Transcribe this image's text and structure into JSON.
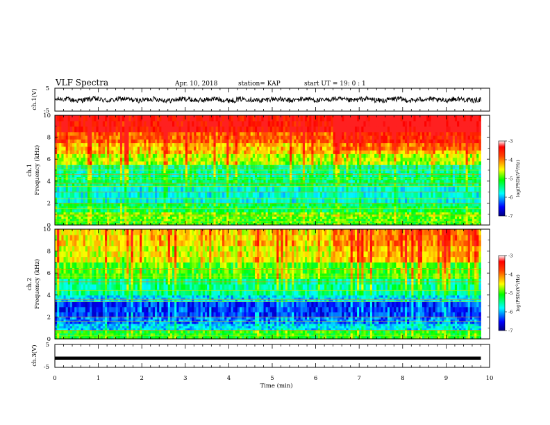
{
  "header": {
    "title": "VLF Spectra",
    "date": "Apr. 10, 2018",
    "station": "station= KAP",
    "start": "start  UT =   19: 0  : 1"
  },
  "chart_data": [
    {
      "id": "ch1-waveform",
      "type": "line",
      "ylabel": "ch.1(V)",
      "ylim": [
        -5,
        5
      ],
      "yticks": [
        "5",
        "-5"
      ],
      "xlim": [
        0,
        10
      ],
      "extent_min": 9.8,
      "amplitude_V": [
        -1.5,
        1.5
      ]
    },
    {
      "id": "ch1-spectrogram",
      "type": "heatmap",
      "ylabel": "Frequency (kHz)",
      "channel_label": "ch.1",
      "ylim": [
        0,
        10
      ],
      "yticks": [
        "0",
        "2",
        "4",
        "6",
        "8",
        "10"
      ],
      "xlim": [
        0,
        10
      ],
      "extent_min": 9.8,
      "colorbar": {
        "label": "log(PSD)(V²/Hz)",
        "range": [
          -7,
          -3
        ],
        "ticks": [
          "-3",
          "-4",
          "-5",
          "-6",
          "-7"
        ]
      },
      "bands": [
        {
          "from_kHz": 0,
          "to_kHz": 0.6,
          "log_psd": -5.0
        },
        {
          "from_kHz": 0.6,
          "to_kHz": 1.2,
          "log_psd": -4.9
        },
        {
          "from_kHz": 1.2,
          "to_kHz": 2.0,
          "log_psd": -5.3
        },
        {
          "from_kHz": 2.0,
          "to_kHz": 3.6,
          "log_psd": -5.7
        },
        {
          "from_kHz": 3.6,
          "to_kHz": 4.4,
          "log_psd": -5.4
        },
        {
          "from_kHz": 4.4,
          "to_kHz": 5.5,
          "log_psd": -5.5
        },
        {
          "from_kHz": 5.5,
          "to_kHz": 6.5,
          "log_psd": -4.7
        },
        {
          "from_kHz": 6.5,
          "to_kHz": 7.5,
          "log_psd": -4.3
        },
        {
          "from_kHz": 7.5,
          "to_kHz": 8.5,
          "log_psd": -3.9
        },
        {
          "from_kHz": 8.5,
          "to_kHz": 10,
          "log_psd": -3.4
        }
      ],
      "tones_kHz": [
        0.3,
        0.9,
        1.5,
        2.0,
        2.4,
        3.0,
        3.5,
        3.8,
        4.2,
        4.6,
        5.0,
        5.3
      ]
    },
    {
      "id": "ch2-spectrogram",
      "type": "heatmap",
      "ylabel": "Frequency (kHz)",
      "channel_label": "ch.2",
      "ylim": [
        0,
        10
      ],
      "yticks": [
        "0",
        "2",
        "4",
        "6",
        "8",
        "10"
      ],
      "xlim": [
        0,
        10
      ],
      "extent_min": 9.8,
      "colorbar": {
        "label": "log(PSD)(V²/Hz)",
        "range": [
          -7,
          -3
        ],
        "ticks": [
          "-3",
          "-4",
          "-5",
          "-6",
          "-7"
        ]
      },
      "bands": [
        {
          "from_kHz": 0,
          "to_kHz": 0.8,
          "log_psd": -5.1
        },
        {
          "from_kHz": 0.8,
          "to_kHz": 1.4,
          "log_psd": -5.9
        },
        {
          "from_kHz": 1.4,
          "to_kHz": 2.0,
          "log_psd": -6.2
        },
        {
          "from_kHz": 2.0,
          "to_kHz": 3.4,
          "log_psd": -6.4
        },
        {
          "from_kHz": 3.4,
          "to_kHz": 4.0,
          "log_psd": -5.9
        },
        {
          "from_kHz": 4.0,
          "to_kHz": 5.5,
          "log_psd": -5.5
        },
        {
          "from_kHz": 5.5,
          "to_kHz": 7.0,
          "log_psd": -5.0
        },
        {
          "from_kHz": 7.0,
          "to_kHz": 8.5,
          "log_psd": -4.6
        },
        {
          "from_kHz": 8.5,
          "to_kHz": 10,
          "log_psd": -4.4
        }
      ],
      "tones_kHz": [
        0.3,
        0.8,
        1.6,
        2.0,
        3.4,
        3.6,
        4.4,
        5.2,
        5.7,
        6.3
      ]
    },
    {
      "id": "ch3-waveform",
      "type": "line",
      "ylabel": "ch.3(V)",
      "ylim": [
        -5,
        5
      ],
      "yticks": [
        "5",
        "-5"
      ],
      "xlim": [
        0,
        10
      ],
      "extent_min": 9.8,
      "level_V": -1.0
    }
  ],
  "time_axis": {
    "xlabel": "Time (min)",
    "ticks": [
      "0",
      "1",
      "2",
      "3",
      "4",
      "5",
      "6",
      "7",
      "8",
      "9",
      "10"
    ]
  },
  "colors": {
    "axis": "#000000",
    "background": "#ffffff"
  }
}
